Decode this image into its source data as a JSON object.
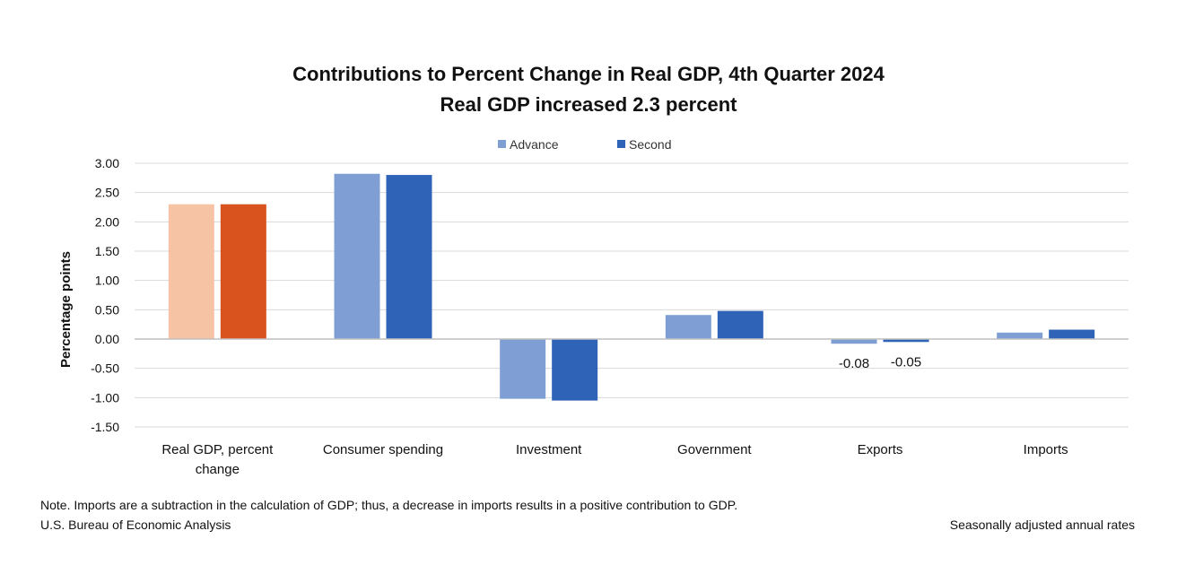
{
  "chart_data": {
    "type": "bar",
    "title": "Contributions to Percent Change in Real GDP, 4th Quarter 2024",
    "subtitle": "Real GDP increased 2.3 percent",
    "xlabel": "",
    "ylabel": "Percentage points",
    "ylim": [
      -1.5,
      3.0
    ],
    "yticks": [
      "3.00",
      "2.50",
      "2.00",
      "1.50",
      "1.00",
      "0.50",
      "0.00",
      "-0.50",
      "-1.00",
      "-1.50"
    ],
    "grid": true,
    "legend_position": "top-center",
    "categories": [
      [
        "Real GDP, percent",
        "change"
      ],
      [
        "Consumer spending"
      ],
      [
        "Investment"
      ],
      [
        "Government"
      ],
      [
        "Exports"
      ],
      [
        "Imports"
      ]
    ],
    "series": [
      {
        "name": "Advance",
        "values": [
          2.3,
          2.82,
          -1.02,
          0.41,
          -0.08,
          0.11
        ],
        "color": "#7f9fd4"
      },
      {
        "name": "Second",
        "values": [
          2.3,
          2.8,
          -1.05,
          0.48,
          -0.05,
          0.16
        ],
        "color": "#2e63b8"
      }
    ],
    "highlight_colors": {
      "Advance": "#f7c3a5",
      "Second": "#d9531e"
    },
    "data_labels": [
      {
        "series": "Advance",
        "category_index": 4,
        "text": "-0.08"
      },
      {
        "series": "Second",
        "category_index": 4,
        "text": "-0.05"
      }
    ],
    "grid_color": "#d9d9d9",
    "axis_color": "#bfbfbf"
  },
  "note": "Note. Imports are a subtraction in the calculation of GDP; thus, a decrease in imports results in a positive contribution to GDP.",
  "source": "U.S. Bureau of Economic Analysis",
  "rates_label": "Seasonally adjusted annual rates"
}
